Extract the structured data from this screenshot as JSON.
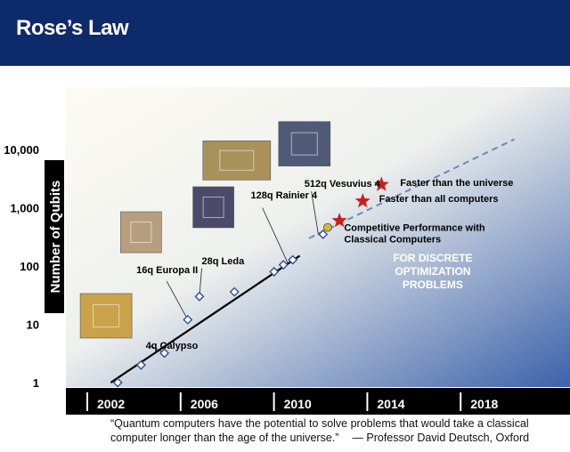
{
  "header": {
    "title": "Rose’s Law"
  },
  "chart_data": {
    "type": "scatter",
    "title": "",
    "xlabel": "",
    "ylabel": "Number of Qubits",
    "y_scale": "log",
    "ylim": [
      1,
      30000
    ],
    "xlim": [
      2001.5,
      2022
    ],
    "x_ticks": [
      2002,
      2006,
      2010,
      2014,
      2018
    ],
    "x_tick_labels": [
      "2002",
      "2006",
      "2010",
      "2014",
      "2018"
    ],
    "y_ticks": [
      1,
      10,
      100,
      1000,
      10000
    ],
    "y_tick_labels": [
      "1",
      "10",
      "100",
      "1,000",
      "10,000"
    ],
    "grid": false,
    "series": [
      {
        "kind": "points",
        "color": "#2f4f8f",
        "points": [
          {
            "x": 2003.0,
            "y": 1
          },
          {
            "x": 2004.0,
            "y": 2
          },
          {
            "x": 2005.0,
            "y": 3.2
          },
          {
            "x": 2006.0,
            "y": 12
          },
          {
            "x": 2006.5,
            "y": 30
          },
          {
            "x": 2008.0,
            "y": 36
          },
          {
            "x": 2009.7,
            "y": 80
          },
          {
            "x": 2010.1,
            "y": 105
          },
          {
            "x": 2010.5,
            "y": 128
          },
          {
            "x": 2011.8,
            "y": 350
          }
        ]
      },
      {
        "kind": "trend",
        "style": "solid",
        "color": "#000000",
        "points": [
          {
            "x": 2002.7,
            "y": 1
          },
          {
            "x": 2010.8,
            "y": 150
          }
        ]
      },
      {
        "kind": "trend",
        "style": "dashed",
        "color": "#6f86b8",
        "points": [
          {
            "x": 2011.2,
            "y": 300
          },
          {
            "x": 2020.0,
            "y": 15000
          }
        ]
      },
      {
        "kind": "highlight",
        "color": "#d4b83a",
        "points": [
          {
            "x": 2012.0,
            "y": 460
          }
        ]
      },
      {
        "kind": "stars",
        "color": "#c81e1e",
        "points": [
          {
            "x": 2012.5,
            "y": 600
          },
          {
            "x": 2013.5,
            "y": 1300
          },
          {
            "x": 2014.3,
            "y": 2500
          }
        ]
      }
    ],
    "annotations": [
      {
        "id": "calypso",
        "text": "4q Calypso",
        "x": 2004.2,
        "y": 3.8
      },
      {
        "id": "europa",
        "text": "16q Europa II",
        "x": 2003.8,
        "y": 75
      },
      {
        "id": "leda",
        "text": "28q Leda",
        "x": 2006.6,
        "y": 108
      },
      {
        "id": "rainier",
        "text": "128q Rainier 4",
        "x": 2008.7,
        "y": 1450
      },
      {
        "id": "vesuvius",
        "text": "512q Vesuvius 4",
        "x": 2011.0,
        "y": 2300
      },
      {
        "id": "competitive",
        "text_lines": [
          "Competitive Performance with",
          "Classical Computers"
        ],
        "x": 2012.7,
        "y": 400
      },
      {
        "id": "faster-all",
        "text": "Faster than all computers",
        "x": 2014.2,
        "y": 1250
      },
      {
        "id": "faster-universe",
        "text": "Faster than the universe",
        "x": 2015.1,
        "y": 2350
      },
      {
        "id": "optimization",
        "text_lines": [
          "FOR DISCRETE",
          "OPTIMIZATION",
          "PROBLEMS"
        ],
        "x": 2016.5,
        "y": 120
      }
    ],
    "chip_images": [
      {
        "id": "calypso",
        "x": 2002.5,
        "y": 14,
        "color": "#c9a24a"
      },
      {
        "id": "europa",
        "x": 2004.0,
        "y": 380,
        "color": "#b79e7e"
      },
      {
        "id": "leda",
        "x": 2007.1,
        "y": 1020,
        "color": "#4b4a68"
      },
      {
        "id": "rainier",
        "x": 2008.1,
        "y": 6500,
        "color": "#a9925a"
      },
      {
        "id": "vesuvius",
        "x": 2011.0,
        "y": 12500,
        "color": "#4f5b76"
      }
    ]
  },
  "quote": {
    "text": "“Quantum computers have the potential to solve problems that would take a classical computer longer than the age of the universe.”",
    "attribution": "— Professor David Deutsch, Oxford"
  }
}
